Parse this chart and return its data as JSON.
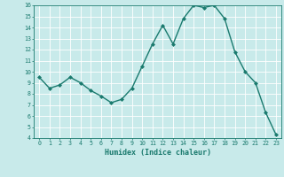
{
  "x": [
    0,
    1,
    2,
    3,
    4,
    5,
    6,
    7,
    8,
    9,
    10,
    11,
    12,
    13,
    14,
    15,
    16,
    17,
    18,
    19,
    20,
    21,
    22,
    23
  ],
  "y": [
    9.5,
    8.5,
    8.8,
    9.5,
    9.0,
    8.3,
    7.8,
    7.2,
    7.5,
    8.5,
    10.5,
    12.5,
    14.2,
    12.5,
    14.8,
    16.0,
    15.8,
    16.0,
    14.8,
    11.8,
    10.0,
    9.0,
    6.3,
    4.3
  ],
  "xlabel": "Humidex (Indice chaleur)",
  "ylim_min": 4,
  "ylim_max": 16,
  "xlim_min": -0.5,
  "xlim_max": 23.5,
  "yticks": [
    4,
    5,
    6,
    7,
    8,
    9,
    10,
    11,
    12,
    13,
    14,
    15,
    16
  ],
  "xticks": [
    0,
    1,
    2,
    3,
    4,
    5,
    6,
    7,
    8,
    9,
    10,
    11,
    12,
    13,
    14,
    15,
    16,
    17,
    18,
    19,
    20,
    21,
    22,
    23
  ],
  "line_color": "#1a7a6e",
  "bg_color": "#c8eaea",
  "grid_color": "#b0d8d8",
  "tick_label_color": "#1a7a6e",
  "xlabel_color": "#1a7a6e"
}
